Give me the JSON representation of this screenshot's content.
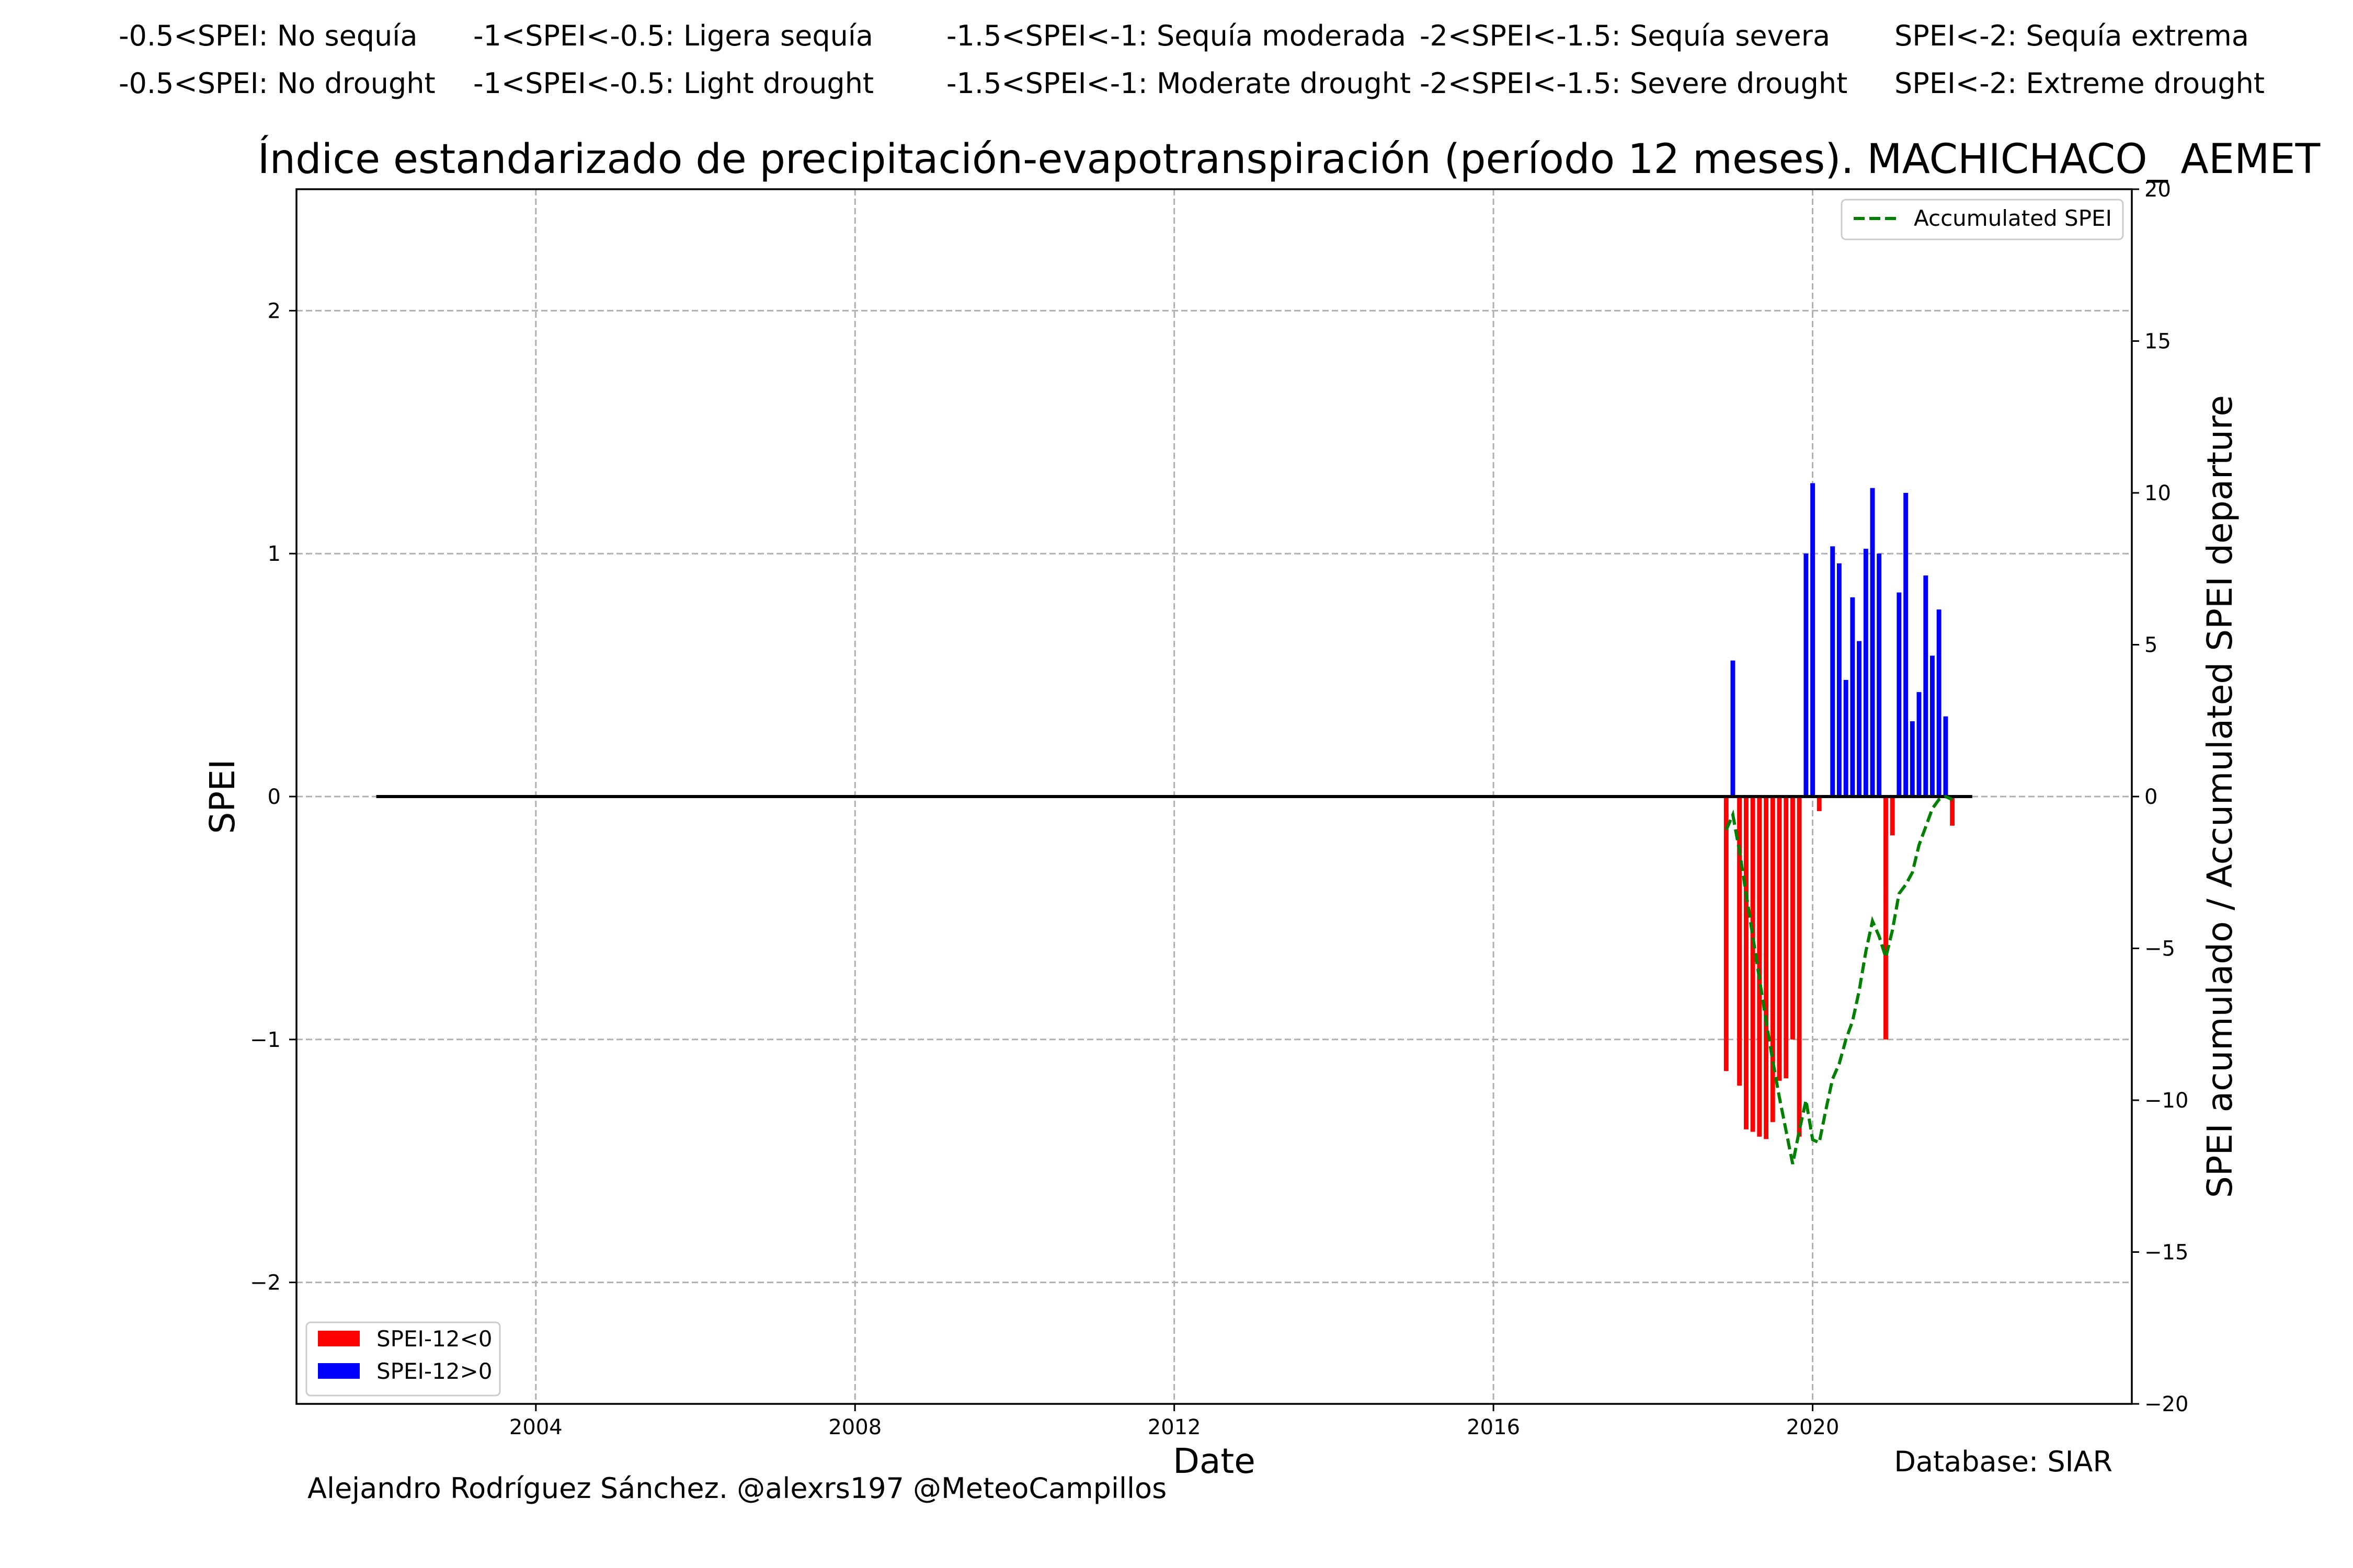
{
  "legend_header": {
    "es": [
      "-0.5<SPEI: No sequía",
      "-1<SPEI<-0.5: Ligera sequía",
      "-1.5<SPEI<-1: Sequía moderada",
      "-2<SPEI<-1.5: Sequía severa",
      "SPEI<-2: Sequía extrema"
    ],
    "en": [
      "-0.5<SPEI: No drought",
      "-1<SPEI<-0.5: Light drought",
      "-1.5<SPEI<-1: Moderate drought",
      "-2<SPEI<-1.5: Severe drought",
      "SPEI<-2: Extreme drought"
    ]
  },
  "footer": {
    "credit": "Alejandro Rodríguez Sánchez. @alexrs197 @MeteoCampillos",
    "database": "Database: SIAR"
  },
  "chart_data": {
    "type": "bar",
    "title": "Índice estandarizado de precipitación-evapotranspiración (período 12 meses). MACHICHACO_ AEMET",
    "xlabel": "Date",
    "ylabel": "SPEI",
    "y2label": "SPEI acumulado / Accumulated SPEI departure",
    "xlim": [
      2001.0,
      2024.0
    ],
    "ylim": [
      -2.5,
      2.5
    ],
    "y2lim": [
      -20,
      20
    ],
    "xticks": [
      2004,
      2008,
      2012,
      2016,
      2020
    ],
    "yticks": [
      -2,
      -1,
      0,
      1,
      2
    ],
    "y2ticks": [
      -20,
      -15,
      -10,
      -5,
      0,
      5,
      10,
      15,
      20
    ],
    "grid": true,
    "zero_line_x": [
      2002.0,
      2022.0
    ],
    "colors": {
      "negative": "#ff0000",
      "positive": "#0000ff",
      "accumulated": "#008000",
      "grid": "#b0b0b0"
    },
    "series": [
      {
        "name": "SPEI-12<0",
        "x": [
          2018.917,
          2019.083,
          2019.167,
          2019.25,
          2019.333,
          2019.417,
          2019.5,
          2019.583,
          2019.667,
          2019.75,
          2019.833,
          2020.083,
          2020.917,
          2021.0,
          2021.75
        ],
        "values": [
          -1.13,
          -1.19,
          -1.37,
          -1.38,
          -1.4,
          -1.41,
          -1.34,
          -1.17,
          -1.16,
          -1.0,
          -1.4,
          -0.06,
          -1.0,
          -0.16,
          -0.12
        ]
      },
      {
        "name": "SPEI-12>0",
        "x": [
          2019.0,
          2019.917,
          2020.0,
          2020.25,
          2020.333,
          2020.417,
          2020.5,
          2020.583,
          2020.667,
          2020.75,
          2020.833,
          2021.083,
          2021.167,
          2021.25,
          2021.333,
          2021.417,
          2021.5,
          2021.583,
          2021.667
        ],
        "values": [
          0.56,
          1.0,
          1.29,
          1.03,
          0.96,
          0.48,
          0.82,
          0.64,
          1.02,
          1.27,
          1.0,
          0.84,
          1.25,
          0.31,
          0.43,
          0.91,
          0.58,
          0.77,
          0.33
        ]
      },
      {
        "name": "Accumulated SPEI",
        "x": [
          2018.917,
          2019.0,
          2019.083,
          2019.167,
          2019.25,
          2019.333,
          2019.417,
          2019.5,
          2019.583,
          2019.667,
          2019.75,
          2019.833,
          2019.917,
          2020.0,
          2020.083,
          2020.167,
          2020.25,
          2020.333,
          2020.417,
          2020.5,
          2020.583,
          2020.667,
          2020.75,
          2020.833,
          2020.917,
          2021.0,
          2021.083,
          2021.167,
          2021.25,
          2021.333,
          2021.417,
          2021.5,
          2021.583,
          2021.667,
          2021.75
        ],
        "values": [
          -1.1,
          -0.6,
          -1.8,
          -3.2,
          -4.6,
          -6.0,
          -7.4,
          -8.7,
          -9.9,
          -11.0,
          -12.1,
          -11.0,
          -10.0,
          -11.3,
          -11.4,
          -10.3,
          -9.3,
          -8.8,
          -8.0,
          -7.4,
          -6.4,
          -5.1,
          -4.1,
          -4.6,
          -5.3,
          -4.4,
          -3.2,
          -2.9,
          -2.5,
          -1.6,
          -1.0,
          -0.4,
          -0.1,
          0.0,
          -0.1
        ]
      }
    ]
  }
}
